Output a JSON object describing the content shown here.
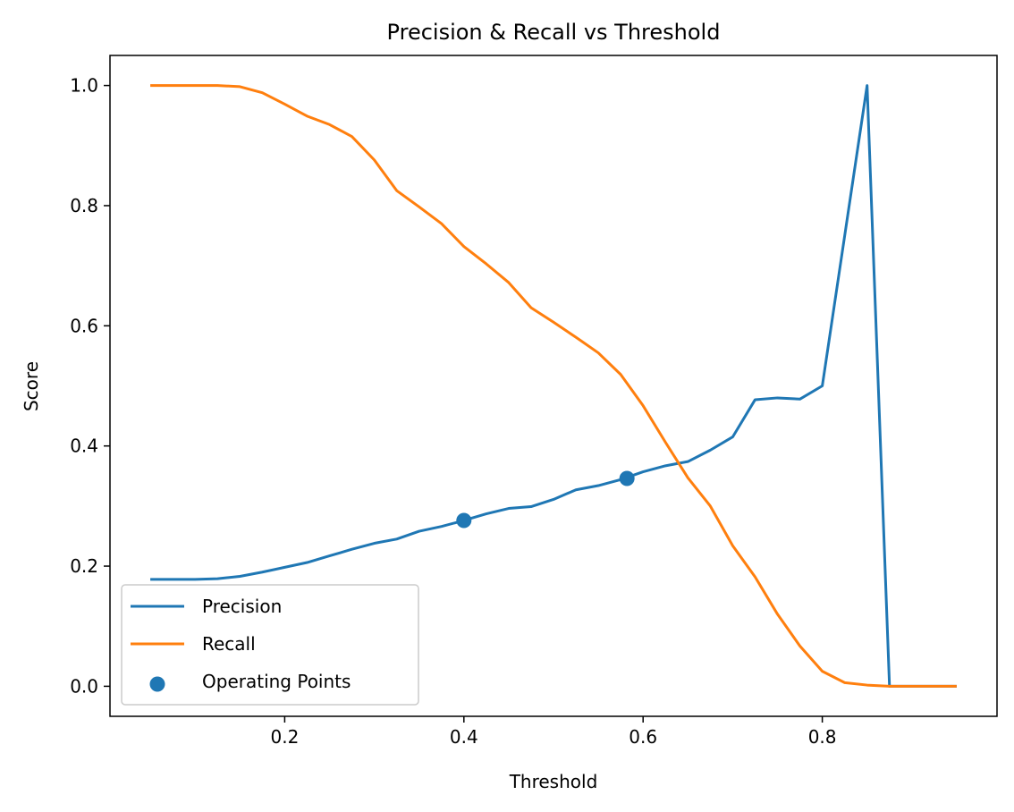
{
  "chart_data": {
    "type": "line",
    "title": "Precision & Recall vs Threshold",
    "xlabel": "Threshold",
    "ylabel": "Score",
    "xlim": [
      0.005,
      0.995
    ],
    "ylim": [
      -0.05,
      1.05
    ],
    "xticks": [
      0.2,
      0.4,
      0.6,
      0.8
    ],
    "xtick_labels": [
      "0.2",
      "0.4",
      "0.6",
      "0.8"
    ],
    "yticks": [
      0.0,
      0.2,
      0.4,
      0.6,
      0.8,
      1.0
    ],
    "ytick_labels": [
      "0.0",
      "0.2",
      "0.4",
      "0.6",
      "0.8",
      "1.0"
    ],
    "grid": false,
    "legend_position": "lower-left",
    "x": [
      0.05,
      0.075,
      0.1,
      0.125,
      0.15,
      0.175,
      0.2,
      0.225,
      0.25,
      0.275,
      0.3,
      0.325,
      0.35,
      0.375,
      0.4,
      0.425,
      0.45,
      0.475,
      0.5,
      0.525,
      0.55,
      0.575,
      0.6,
      0.625,
      0.65,
      0.675,
      0.7,
      0.725,
      0.75,
      0.775,
      0.8,
      0.825,
      0.85,
      0.875,
      0.9,
      0.925,
      0.95
    ],
    "series": [
      {
        "name": "Precision",
        "color": "#1f77b4",
        "values": [
          0.178,
          0.178,
          0.178,
          0.179,
          0.183,
          0.19,
          0.198,
          0.206,
          0.217,
          0.228,
          0.238,
          0.245,
          0.258,
          0.266,
          0.276,
          0.287,
          0.296,
          0.299,
          0.311,
          0.327,
          0.334,
          0.344,
          0.357,
          0.367,
          0.374,
          0.393,
          0.415,
          0.477,
          0.48,
          0.478,
          0.5,
          0.75,
          1.0,
          0.0,
          0.0,
          0.0,
          0.0
        ]
      },
      {
        "name": "Recall",
        "color": "#ff7f0e",
        "values": [
          1.0,
          1.0,
          1.0,
          1.0,
          0.998,
          0.988,
          0.969,
          0.949,
          0.935,
          0.915,
          0.876,
          0.825,
          0.798,
          0.77,
          0.732,
          0.703,
          0.672,
          0.63,
          0.606,
          0.581,
          0.555,
          0.519,
          0.467,
          0.406,
          0.347,
          0.3,
          0.234,
          0.182,
          0.12,
          0.067,
          0.025,
          0.006,
          0.002,
          0.0,
          0.0,
          0.0,
          0.0
        ]
      }
    ],
    "scatter": {
      "name": "Operating Points",
      "color": "#1f77b4",
      "points": [
        {
          "x": 0.4,
          "y": 0.276
        },
        {
          "x": 0.582,
          "y": 0.346
        }
      ]
    }
  }
}
